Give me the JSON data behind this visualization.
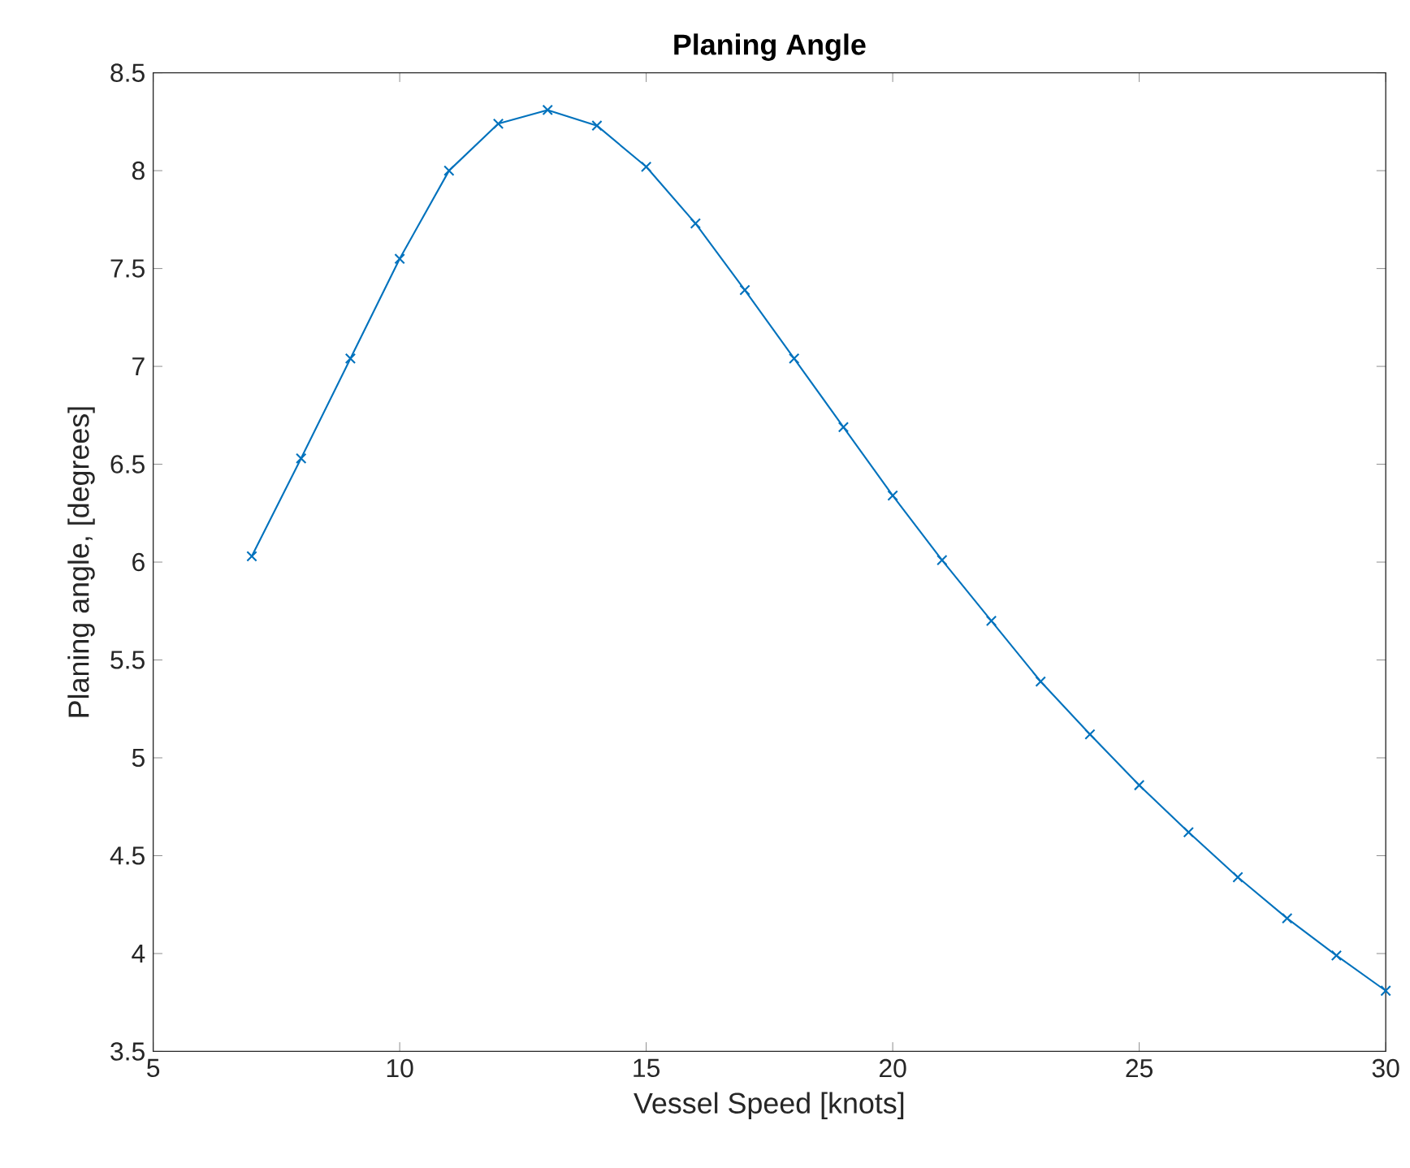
{
  "chart_data": {
    "type": "line",
    "title": "Planing Angle",
    "xlabel": "Vessel Speed [knots]",
    "ylabel": "Planing angle, [degrees]",
    "x": [
      7,
      8,
      9,
      10,
      11,
      12,
      13,
      14,
      15,
      16,
      17,
      18,
      19,
      20,
      21,
      22,
      23,
      24,
      25,
      26,
      27,
      28,
      29,
      30
    ],
    "series": [
      {
        "color": "#0072bd",
        "values": [
          6.03,
          6.53,
          7.04,
          7.55,
          8.0,
          8.24,
          8.31,
          8.23,
          8.02,
          7.73,
          7.39,
          7.04,
          6.69,
          6.34,
          6.01,
          5.7,
          5.39,
          5.12,
          4.86,
          4.62,
          4.39,
          4.18,
          3.99,
          3.81
        ]
      }
    ],
    "xlim": [
      5,
      30
    ],
    "ylim": [
      3.5,
      8.5
    ],
    "xticks": [
      5,
      10,
      15,
      20,
      25,
      30
    ],
    "yticks": [
      3.5,
      4,
      4.5,
      5,
      5.5,
      6,
      6.5,
      7,
      7.5,
      8,
      8.5
    ],
    "grid": false,
    "marker": "cross",
    "line_style": "solid"
  }
}
